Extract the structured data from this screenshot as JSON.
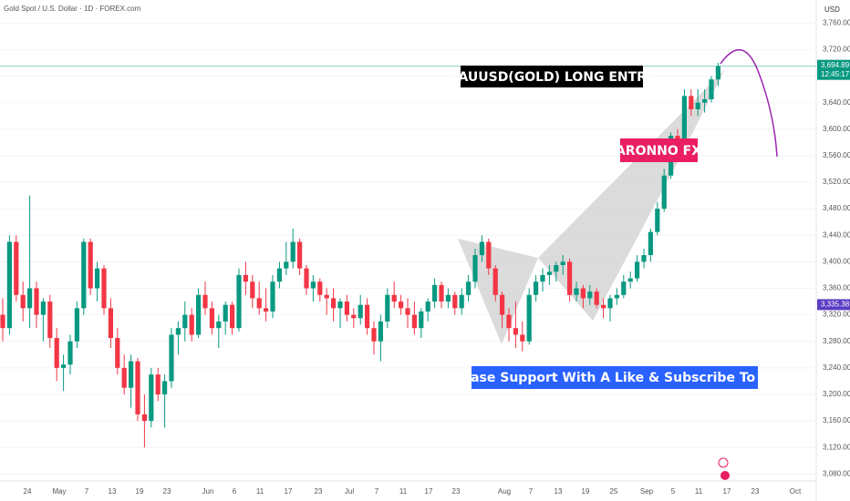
{
  "chart_data": {
    "type": "candlestick",
    "title": "Gold Spot / U.S. Dollar · 1D · FOREX.com",
    "currency": "USD",
    "up_color": "#089981",
    "down_color": "#f23645",
    "ylim": [
      3053,
      3781
    ],
    "yticks": [
      {
        "value": 3760,
        "label": "3,760.00"
      },
      {
        "value": 3720,
        "label": "3,720.00"
      },
      {
        "value": 3680,
        "label": "3,680.00"
      },
      {
        "value": 3640,
        "label": "3,640.00"
      },
      {
        "value": 3600,
        "label": "3,600.00"
      },
      {
        "value": 3560,
        "label": "3,560.00"
      },
      {
        "value": 3520,
        "label": "3,520.00"
      },
      {
        "value": 3480,
        "label": "3,480.00"
      },
      {
        "value": 3440,
        "label": "3,440.00"
      },
      {
        "value": 3400,
        "label": "3,400.00"
      },
      {
        "value": 3360,
        "label": "3,360.00"
      },
      {
        "value": 3320,
        "label": "3,320.00"
      },
      {
        "value": 3280,
        "label": "3,280.00"
      },
      {
        "value": 3240,
        "label": "3,240.00"
      },
      {
        "value": 3200,
        "label": "3,200.00"
      },
      {
        "value": 3160,
        "label": "3,160.00"
      },
      {
        "value": 3120,
        "label": "3,120.00"
      },
      {
        "value": 3080,
        "label": "3,080.00"
      }
    ],
    "xtick_labels": [
      "24",
      "May",
      "7",
      "13",
      "19",
      "23",
      "Jun",
      "6",
      "11",
      "17",
      "23",
      "Jul",
      "7",
      "11",
      "17",
      "23",
      "Aug",
      "7",
      "13",
      "19",
      "25",
      "Sep",
      "5",
      "11",
      "17",
      "23",
      "Oct"
    ],
    "last_price": {
      "value": 3694.89,
      "label": "3,694.89"
    },
    "countdown": "12:45:17",
    "marker_price": {
      "value": 3335.38,
      "label": "3,335.38"
    },
    "annotations": [
      "XAUUSD(GOLD) LONG ENTRY",
      "ARONNO FX",
      "Please Support With A Like & Subscribe To Me"
    ],
    "ohlc": [
      [
        3320,
        3345,
        3280,
        3300
      ],
      [
        3300,
        3440,
        3290,
        3430
      ],
      [
        3430,
        3440,
        3340,
        3350
      ],
      [
        3350,
        3370,
        3310,
        3330
      ],
      [
        3330,
        3500,
        3300,
        3360
      ],
      [
        3360,
        3370,
        3300,
        3320
      ],
      [
        3320,
        3345,
        3280,
        3340
      ],
      [
        3340,
        3350,
        3270,
        3285
      ],
      [
        3285,
        3300,
        3220,
        3240
      ],
      [
        3240,
        3260,
        3205,
        3245
      ],
      [
        3245,
        3290,
        3230,
        3280
      ],
      [
        3280,
        3340,
        3270,
        3330
      ],
      [
        3330,
        3435,
        3320,
        3430
      ],
      [
        3430,
        3435,
        3350,
        3360
      ],
      [
        3360,
        3400,
        3340,
        3390
      ],
      [
        3390,
        3395,
        3320,
        3330
      ],
      [
        3330,
        3345,
        3270,
        3285
      ],
      [
        3285,
        3300,
        3230,
        3240
      ],
      [
        3240,
        3260,
        3200,
        3210
      ],
      [
        3210,
        3260,
        3180,
        3250
      ],
      [
        3250,
        3255,
        3160,
        3170
      ],
      [
        3170,
        3200,
        3120,
        3160
      ],
      [
        3160,
        3240,
        3150,
        3230
      ],
      [
        3230,
        3240,
        3190,
        3200
      ],
      [
        3200,
        3230,
        3150,
        3220
      ],
      [
        3220,
        3300,
        3210,
        3290
      ],
      [
        3290,
        3310,
        3260,
        3300
      ],
      [
        3300,
        3340,
        3280,
        3320
      ],
      [
        3320,
        3330,
        3280,
        3290
      ],
      [
        3290,
        3360,
        3285,
        3350
      ],
      [
        3350,
        3370,
        3320,
        3330
      ],
      [
        3330,
        3340,
        3290,
        3300
      ],
      [
        3300,
        3320,
        3270,
        3310
      ],
      [
        3310,
        3340,
        3290,
        3335
      ],
      [
        3335,
        3340,
        3290,
        3300
      ],
      [
        3300,
        3390,
        3295,
        3380
      ],
      [
        3380,
        3400,
        3350,
        3370
      ],
      [
        3370,
        3380,
        3330,
        3345
      ],
      [
        3345,
        3370,
        3320,
        3330
      ],
      [
        3330,
        3360,
        3310,
        3325
      ],
      [
        3325,
        3380,
        3315,
        3370
      ],
      [
        3370,
        3400,
        3360,
        3390
      ],
      [
        3390,
        3430,
        3380,
        3400
      ],
      [
        3400,
        3450,
        3390,
        3430
      ],
      [
        3430,
        3435,
        3380,
        3390
      ],
      [
        3390,
        3395,
        3350,
        3360
      ],
      [
        3360,
        3380,
        3340,
        3370
      ],
      [
        3370,
        3375,
        3340,
        3350
      ],
      [
        3350,
        3360,
        3320,
        3345
      ],
      [
        3345,
        3360,
        3310,
        3330
      ],
      [
        3330,
        3345,
        3300,
        3340
      ],
      [
        3340,
        3350,
        3310,
        3320
      ],
      [
        3320,
        3330,
        3300,
        3315
      ],
      [
        3315,
        3350,
        3305,
        3335
      ],
      [
        3335,
        3345,
        3290,
        3300
      ],
      [
        3300,
        3310,
        3260,
        3280
      ],
      [
        3280,
        3320,
        3250,
        3310
      ],
      [
        3310,
        3360,
        3300,
        3350
      ],
      [
        3350,
        3370,
        3330,
        3340
      ],
      [
        3340,
        3350,
        3320,
        3330
      ],
      [
        3330,
        3345,
        3300,
        3320
      ],
      [
        3320,
        3340,
        3290,
        3300
      ],
      [
        3300,
        3330,
        3285,
        3325
      ],
      [
        3325,
        3345,
        3310,
        3340
      ],
      [
        3340,
        3375,
        3330,
        3365
      ],
      [
        3365,
        3370,
        3330,
        3340
      ],
      [
        3340,
        3360,
        3330,
        3350
      ],
      [
        3350,
        3355,
        3320,
        3330
      ],
      [
        3330,
        3360,
        3320,
        3350
      ],
      [
        3350,
        3380,
        3340,
        3370
      ],
      [
        3370,
        3420,
        3360,
        3410
      ],
      [
        3410,
        3440,
        3400,
        3430
      ],
      [
        3430,
        3435,
        3380,
        3390
      ],
      [
        3390,
        3395,
        3340,
        3350
      ],
      [
        3350,
        3355,
        3300,
        3320
      ],
      [
        3320,
        3330,
        3280,
        3300
      ],
      [
        3300,
        3340,
        3270,
        3290
      ],
      [
        3290,
        3310,
        3265,
        3280
      ],
      [
        3280,
        3360,
        3275,
        3350
      ],
      [
        3350,
        3380,
        3340,
        3370
      ],
      [
        3370,
        3390,
        3355,
        3380
      ],
      [
        3380,
        3395,
        3365,
        3385
      ],
      [
        3385,
        3400,
        3370,
        3395
      ],
      [
        3395,
        3410,
        3380,
        3400
      ],
      [
        3400,
        3405,
        3340,
        3350
      ],
      [
        3350,
        3370,
        3340,
        3360
      ],
      [
        3360,
        3365,
        3330,
        3345
      ],
      [
        3345,
        3365,
        3335,
        3355
      ],
      [
        3355,
        3360,
        3330,
        3335
      ],
      [
        3335,
        3345,
        3315,
        3330
      ],
      [
        3330,
        3350,
        3310,
        3345
      ],
      [
        3345,
        3360,
        3335,
        3350
      ],
      [
        3350,
        3380,
        3345,
        3370
      ],
      [
        3370,
        3385,
        3360,
        3375
      ],
      [
        3375,
        3410,
        3370,
        3400
      ],
      [
        3400,
        3420,
        3390,
        3410
      ],
      [
        3410,
        3450,
        3400,
        3445
      ],
      [
        3445,
        3490,
        3440,
        3480
      ],
      [
        3480,
        3540,
        3475,
        3530
      ],
      [
        3530,
        3595,
        3525,
        3590
      ],
      [
        3590,
        3600,
        3550,
        3570
      ],
      [
        3570,
        3660,
        3560,
        3650
      ],
      [
        3650,
        3660,
        3620,
        3630
      ],
      [
        3630,
        3660,
        3620,
        3640
      ],
      [
        3640,
        3660,
        3625,
        3645
      ],
      [
        3645,
        3680,
        3640,
        3675
      ],
      [
        3675,
        3700,
        3665,
        3695
      ]
    ]
  }
}
